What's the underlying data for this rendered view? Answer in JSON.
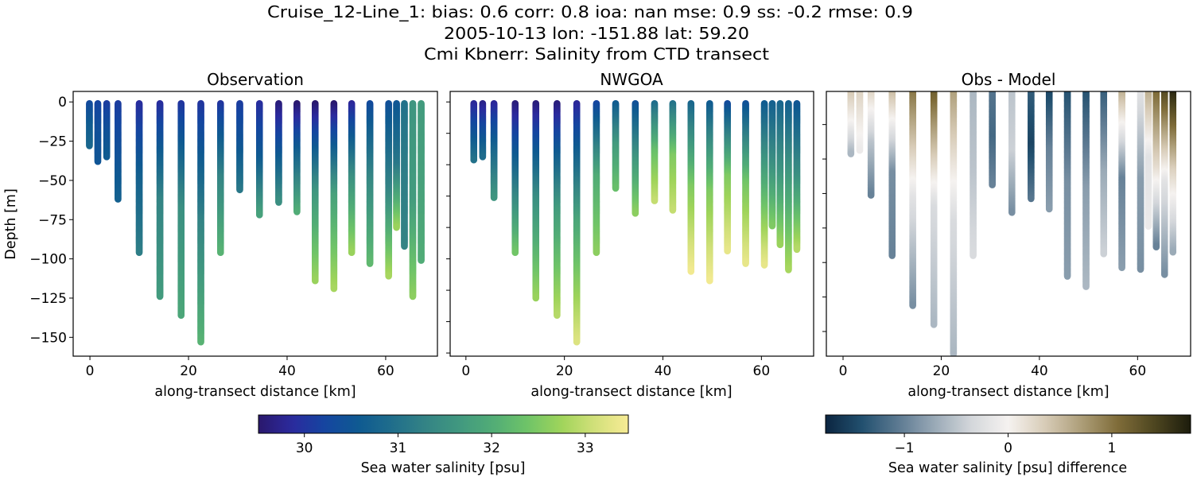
{
  "chart_data": {
    "type": "scatter",
    "title_lines": [
      "Cruise_12-Line_1: bias: 0.6  corr: 0.8  ioa: nan  mse: 0.9  ss: -0.2  rmse: 0.9",
      "2005-10-13 lon: -151.88 lat: 59.20",
      "Cmi Kbnerr: Salinity from CTD transect"
    ],
    "panels": [
      {
        "title": "Observation",
        "xlabel": "along-transect distance [km]",
        "ylabel": "Depth [m]",
        "xlim": [
          -3.4,
          70.5
        ],
        "ylim": [
          -162,
          6.7
        ],
        "xticks": [
          0,
          20,
          40,
          60
        ],
        "xtick_labels": [
          "0",
          "20",
          "40",
          "60"
        ],
        "yticks": [
          0,
          -25,
          -50,
          -75,
          -100,
          -125,
          -150
        ],
        "ytick_labels": [
          "0",
          "−25",
          "−50",
          "−75",
          "−100",
          "−125",
          "−150"
        ],
        "field": "obs",
        "cmap": "salinity"
      },
      {
        "title": "NWGOA",
        "xlabel": "along-transect distance [km]",
        "ylabel": "",
        "xlim": [
          -3.2,
          70.6
        ],
        "ylim": [
          -162,
          6.7
        ],
        "xticks": [
          0,
          20,
          40,
          60
        ],
        "xtick_labels": [
          "0",
          "20",
          "40",
          "60"
        ],
        "yticks": [
          0,
          -20,
          -40,
          -60,
          -80,
          -100,
          -120,
          -140,
          -160
        ],
        "ytick_labels": [],
        "field": "model",
        "cmap": "salinity"
      },
      {
        "title": "Obs - Model",
        "xlabel": "along-transect distance [km]",
        "ylabel": "",
        "xlim": [
          -3.4,
          70.8
        ],
        "ylim": [
          -154.3,
          -0.8
        ],
        "xticks": [
          0,
          20,
          40,
          60
        ],
        "xtick_labels": [
          "0",
          "20",
          "40",
          "60"
        ],
        "yticks": [
          -20,
          -40,
          -60,
          -80,
          -100,
          -120,
          -140
        ],
        "ytick_labels": [],
        "field": "diff",
        "cmap": "diff"
      }
    ],
    "colorbars": [
      {
        "label": "Sea water salinity [psu]",
        "range": [
          29.51,
          33.46
        ],
        "ticks": [
          30,
          31,
          32,
          33
        ],
        "tick_labels": [
          "30",
          "31",
          "32",
          "33"
        ],
        "cmap": "salinity"
      },
      {
        "label": "Sea water salinity [psu] difference",
        "range": [
          -1.76,
          1.76
        ],
        "ticks": [
          -1,
          0,
          1
        ],
        "tick_labels": [
          "−1",
          "0",
          "1"
        ],
        "cmap": "diff"
      }
    ],
    "colormaps": {
      "salinity": [
        "#2a186c",
        "#2b2a9e",
        "#1446a0",
        "#0f5a91",
        "#206e8b",
        "#348485",
        "#41997f",
        "#52ad76",
        "#6fc468",
        "#9fd45a",
        "#d2e07a",
        "#f7eb95"
      ],
      "diff": [
        "#0b2540",
        "#22506f",
        "#5d7a92",
        "#9aaab7",
        "#d4d7db",
        "#f5f2f0",
        "#d8ccb8",
        "#ad9e79",
        "#7f6c39",
        "#4e4620",
        "#1c1c0c"
      ]
    },
    "casts": [
      {
        "x": -0.1,
        "obs_depth": 28,
        "model_depth": null,
        "obs": [
          30.3,
          30.6,
          30.8
        ],
        "model": null,
        "diff": null
      },
      {
        "x": 1.6,
        "obs_depth": 38,
        "model_depth": 37,
        "obs": [
          30.2,
          30.4,
          30.5
        ],
        "model": [
          29.8,
          30.4,
          31.0
        ],
        "diff": [
          0.4,
          0.0,
          -0.6
        ]
      },
      {
        "x": 3.4,
        "obs_depth": 35,
        "model_depth": 35,
        "obs": [
          30.1,
          30.4,
          30.6
        ],
        "model": [
          29.7,
          30.3,
          30.9
        ],
        "diff": [
          0.3,
          0.1,
          -0.1
        ]
      },
      {
        "x": 5.7,
        "obs_depth": 62,
        "model_depth": 61,
        "obs": [
          30.1,
          30.4,
          30.7
        ],
        "model": [
          29.8,
          30.8,
          31.6
        ],
        "diff": [
          0.3,
          -0.5,
          -1.0
        ]
      },
      {
        "x": 10.0,
        "obs_depth": 96,
        "model_depth": 96,
        "obs": [
          29.9,
          30.7,
          31.2
        ],
        "model": [
          29.6,
          31.0,
          32.4
        ],
        "diff": [
          0.5,
          -0.9,
          -1.0
        ]
      },
      {
        "x": 14.2,
        "obs_depth": 124,
        "model_depth": 125,
        "obs": [
          29.9,
          31.3,
          31.7
        ],
        "model": [
          29.6,
          31.5,
          32.7
        ],
        "diff": [
          1.0,
          -0.2,
          -0.9
        ]
      },
      {
        "x": 18.5,
        "obs_depth": 136,
        "model_depth": 136,
        "obs": [
          30.0,
          31.5,
          31.9
        ],
        "model": [
          29.6,
          31.7,
          32.9
        ],
        "diff": [
          1.2,
          -0.3,
          -0.6
        ]
      },
      {
        "x": 22.5,
        "obs_depth": 153,
        "model_depth": 153,
        "obs": [
          30.0,
          31.3,
          32.1
        ],
        "model": [
          29.8,
          31.9,
          33.2
        ],
        "diff": [
          0.7,
          -0.3,
          -0.6
        ]
      },
      {
        "x": 26.5,
        "obs_depth": 96,
        "model_depth": 96,
        "obs": [
          30.0,
          31.3,
          32.1
        ],
        "model": [
          30.2,
          32.0,
          32.6
        ],
        "diff": [
          -0.6,
          -0.5,
          -0.3
        ]
      },
      {
        "x": 30.4,
        "obs_depth": 56,
        "model_depth": 55,
        "obs": [
          30.1,
          30.5,
          31.1
        ],
        "model": [
          30.6,
          31.7,
          32.3
        ],
        "diff": [
          -1.1,
          -1.2,
          -1.0
        ]
      },
      {
        "x": 34.4,
        "obs_depth": 72,
        "model_depth": 71,
        "obs": [
          29.9,
          30.6,
          31.8
        ],
        "model": [
          30.4,
          31.6,
          32.6
        ],
        "diff": [
          -0.5,
          -0.4,
          -0.9
        ]
      },
      {
        "x": 38.3,
        "obs_depth": 64,
        "model_depth": 63,
        "obs": [
          29.6,
          30.5,
          31.5
        ],
        "model": [
          30.9,
          32.3,
          33.0
        ],
        "diff": [
          -1.3,
          -1.5,
          -1.1
        ]
      },
      {
        "x": 42.0,
        "obs_depth": 70,
        "model_depth": 69,
        "obs": [
          29.5,
          30.8,
          32.0
        ],
        "model": [
          31.0,
          32.5,
          33.0
        ],
        "diff": [
          -1.5,
          -1.0,
          -0.8
        ]
      },
      {
        "x": 45.7,
        "obs_depth": 114,
        "model_depth": 108,
        "obs": [
          29.5,
          31.6,
          32.7
        ],
        "model": [
          30.8,
          32.5,
          33.4
        ],
        "diff": [
          -1.4,
          -0.9,
          -0.8
        ]
      },
      {
        "x": 49.5,
        "obs_depth": 119,
        "model_depth": 114,
        "obs": [
          29.5,
          31.8,
          32.8
        ],
        "model": [
          30.6,
          32.5,
          33.4
        ],
        "diff": [
          -1.4,
          -0.8,
          -0.6
        ]
      },
      {
        "x": 53.1,
        "obs_depth": 96,
        "model_depth": 95,
        "obs": [
          29.8,
          31.5,
          32.7
        ],
        "model": [
          30.3,
          32.5,
          33.3
        ],
        "diff": [
          -1.3,
          -0.7,
          -0.4
        ]
      },
      {
        "x": 56.8,
        "obs_depth": 103,
        "model_depth": 103,
        "obs": [
          30.3,
          31.4,
          32.2
        ],
        "model": [
          30.4,
          32.4,
          33.3
        ],
        "diff": [
          0.6,
          -1.0,
          -0.8
        ]
      },
      {
        "x": 60.6,
        "obs_depth": 111,
        "model_depth": 104,
        "obs": [
          30.4,
          31.3,
          32.8
        ],
        "model": [
          30.6,
          32.0,
          33.3
        ],
        "diff": [
          -0.2,
          -0.8,
          -0.9
        ]
      },
      {
        "x": 62.2,
        "obs_depth": 80,
        "model_depth": 79,
        "obs": [
          30.5,
          31.1,
          32.7
        ],
        "model": [
          30.7,
          31.5,
          32.5
        ],
        "diff": [
          0.6,
          -0.2,
          -0.1
        ]
      },
      {
        "x": 63.8,
        "obs_depth": 92,
        "model_depth": 91,
        "obs": [
          31.0,
          31.2,
          31.3
        ],
        "model": [
          30.8,
          31.6,
          32.7
        ],
        "diff": [
          1.1,
          0.2,
          -1.0
        ]
      },
      {
        "x": 65.5,
        "obs_depth": 124,
        "model_depth": 107,
        "obs": [
          31.6,
          31.7,
          32.6
        ],
        "model": [
          30.7,
          31.8,
          32.8
        ],
        "diff": [
          1.4,
          -0.2,
          -0.9
        ]
      },
      {
        "x": 67.2,
        "obs_depth": 101,
        "model_depth": 94,
        "obs": [
          31.7,
          31.8,
          32.0
        ],
        "model": [
          30.5,
          31.5,
          32.9
        ],
        "diff": [
          1.7,
          0.3,
          -0.7
        ]
      }
    ]
  }
}
